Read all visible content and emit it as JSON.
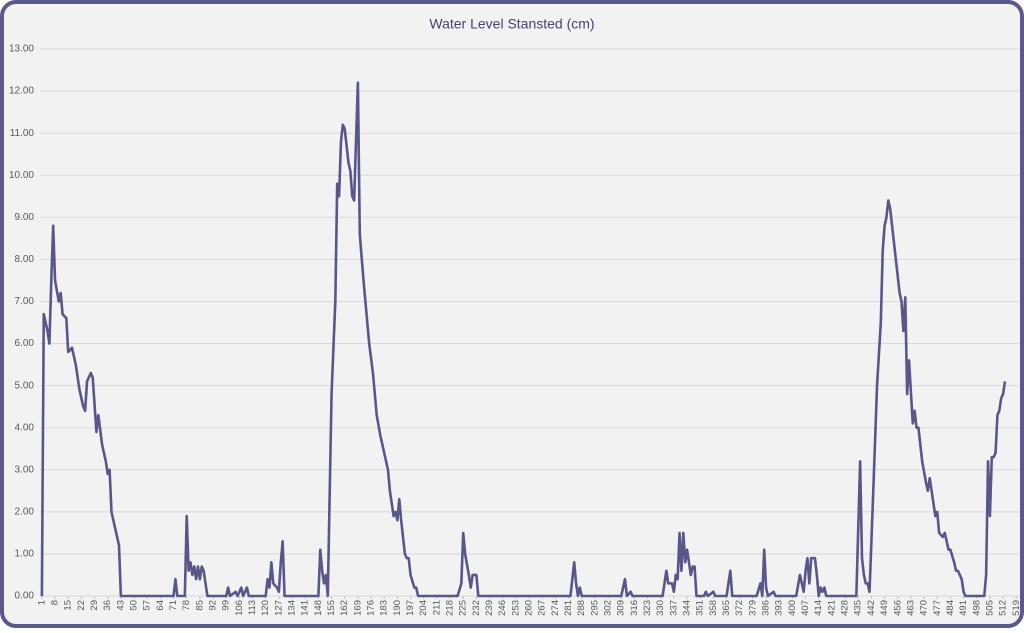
{
  "chart_data": {
    "type": "line",
    "title": "Water Level Stansted (cm)",
    "color": "#57578a",
    "grid": true,
    "xlim": [
      0,
      521
    ],
    "ylim": [
      0,
      13
    ],
    "xticks": [
      1,
      8,
      15,
      22,
      29,
      36,
      43,
      50,
      57,
      64,
      71,
      78,
      85,
      92,
      99,
      106,
      113,
      120,
      127,
      134,
      141,
      148,
      155,
      162,
      169,
      176,
      183,
      190,
      197,
      204,
      211,
      218,
      225,
      232,
      239,
      246,
      253,
      260,
      267,
      274,
      281,
      288,
      295,
      302,
      309,
      316,
      323,
      330,
      337,
      344,
      351,
      358,
      365,
      372,
      379,
      386,
      393,
      400,
      407,
      414,
      421,
      428,
      435,
      442,
      449,
      456,
      463,
      470,
      477,
      484,
      491,
      498,
      505,
      512,
      519
    ],
    "yticks": [
      {
        "value": 0,
        "label": "0.00"
      },
      {
        "value": 1,
        "label": "1.00"
      },
      {
        "value": 2,
        "label": "2.00"
      },
      {
        "value": 3,
        "label": "3.00"
      },
      {
        "value": 4,
        "label": "4.00"
      },
      {
        "value": 5,
        "label": "5.00"
      },
      {
        "value": 6,
        "label": "6.00"
      },
      {
        "value": 7,
        "label": "7.00"
      },
      {
        "value": 8,
        "label": "8.00"
      },
      {
        "value": 9,
        "label": "9.00"
      },
      {
        "value": 10,
        "label": "10.00"
      },
      {
        "value": 11,
        "label": "11.00"
      },
      {
        "value": 12,
        "label": "12.00"
      },
      {
        "value": 13,
        "label": "13.00"
      }
    ],
    "x": [
      1,
      2,
      4,
      5,
      6,
      7,
      8,
      10,
      11,
      12,
      14,
      15,
      17,
      19,
      21,
      23,
      24,
      25,
      27,
      28,
      30,
      31,
      33,
      35,
      36,
      37,
      38,
      40,
      42,
      43,
      71,
      72,
      73,
      77,
      78,
      79,
      80,
      81,
      82,
      83,
      84,
      85,
      86,
      87,
      88,
      89,
      99,
      100,
      101,
      104,
      105,
      107,
      108,
      110,
      111,
      120,
      121,
      122,
      123,
      124,
      126,
      127,
      128,
      129,
      130,
      148,
      149,
      150,
      151,
      152,
      153,
      155,
      157,
      158,
      159,
      160,
      161,
      162,
      164,
      165,
      166,
      167,
      169,
      170,
      172,
      175,
      177,
      179,
      181,
      183,
      185,
      186,
      187,
      188,
      189,
      190,
      191,
      192,
      193,
      194,
      195,
      196,
      197,
      199,
      200,
      201,
      222,
      224,
      225,
      226,
      228,
      229,
      230,
      232,
      233,
      282,
      284,
      285,
      286,
      287,
      288,
      309,
      311,
      312,
      314,
      315,
      331,
      333,
      334,
      336,
      337,
      338,
      339,
      340,
      341,
      342,
      343,
      344,
      345,
      346,
      347,
      348,
      349,
      353,
      354,
      355,
      358,
      359,
      365,
      367,
      368,
      381,
      383,
      384,
      385,
      386,
      387,
      390,
      391,
      402,
      404,
      405,
      406,
      407,
      408,
      409,
      410,
      412,
      413,
      414,
      415,
      416,
      417,
      418,
      434,
      436,
      437,
      438,
      439,
      440,
      441,
      443,
      445,
      447,
      448,
      449,
      450,
      451,
      452,
      453,
      455,
      457,
      458,
      459,
      460,
      461,
      462,
      464,
      465,
      466,
      467,
      469,
      471,
      472,
      473,
      474,
      476,
      477,
      478,
      480,
      481,
      483,
      484,
      486,
      487,
      488,
      490,
      491,
      492,
      502,
      503,
      504,
      505,
      506,
      507,
      508,
      509,
      510,
      511,
      512,
      513
    ],
    "values": [
      0,
      6.7,
      6.3,
      6.0,
      7.5,
      8.8,
      7.5,
      7.0,
      7.2,
      6.7,
      6.6,
      5.8,
      5.9,
      5.5,
      4.9,
      4.5,
      4.4,
      5.1,
      5.3,
      5.2,
      3.9,
      4.3,
      3.6,
      3.2,
      2.9,
      3.0,
      2.0,
      1.6,
      1.2,
      0,
      0,
      0.4,
      0,
      0,
      1.9,
      0.6,
      0.8,
      0.5,
      0.7,
      0.4,
      0.7,
      0.4,
      0.7,
      0.6,
      0.3,
      0,
      0,
      0.2,
      0,
      0.1,
      0,
      0.2,
      0,
      0.2,
      0,
      0,
      0.4,
      0.2,
      0.8,
      0.3,
      0.2,
      0.1,
      0.8,
      1.3,
      0,
      0,
      1.1,
      0.6,
      0.3,
      0.5,
      0,
      4.8,
      7.0,
      9.8,
      9.5,
      10.8,
      11.2,
      11.1,
      10.3,
      10.1,
      9.5,
      9.4,
      12.2,
      8.6,
      7.5,
      6.0,
      5.3,
      4.3,
      3.8,
      3.4,
      3.0,
      2.5,
      2.2,
      1.9,
      2.0,
      1.8,
      2.3,
      1.8,
      1.4,
      1.0,
      0.9,
      0.9,
      0.5,
      0.2,
      0.2,
      0,
      0,
      0.3,
      1.5,
      1.0,
      0.5,
      0.2,
      0.5,
      0.5,
      0,
      0,
      0.8,
      0.3,
      0,
      0.2,
      0,
      0,
      0.4,
      0,
      0.1,
      0,
      0,
      0.6,
      0.3,
      0.3,
      0.1,
      0.5,
      0.4,
      1.5,
      0.6,
      1.5,
      0.8,
      1.1,
      0.8,
      0.5,
      0.7,
      0.7,
      0,
      0,
      0.1,
      0,
      0.1,
      0,
      0,
      0.6,
      0,
      0,
      0.3,
      0,
      1.1,
      0.2,
      0,
      0.1,
      0,
      0,
      0.5,
      0.3,
      0.1,
      0.6,
      0.9,
      0.3,
      0.9,
      0.9,
      0.5,
      0,
      0.2,
      0.1,
      0.2,
      0,
      0,
      3.2,
      0.9,
      0.5,
      0.3,
      0.3,
      0.1,
      2.5,
      5.0,
      6.5,
      8.2,
      8.8,
      9.0,
      9.4,
      9.2,
      8.8,
      8.0,
      7.2,
      7.0,
      6.3,
      7.1,
      4.8,
      5.6,
      4.1,
      4.4,
      4.0,
      4.0,
      3.2,
      2.7,
      2.5,
      2.8,
      2.5,
      1.9,
      2.0,
      1.5,
      1.4,
      1.5,
      1.1,
      1.1,
      0.8,
      0.6,
      0.6,
      0.4,
      0.1,
      0,
      0,
      0.5,
      3.2,
      1.9,
      3.3,
      3.3,
      3.4,
      4.3,
      4.4,
      4.7,
      4.8,
      5.1
    ]
  }
}
